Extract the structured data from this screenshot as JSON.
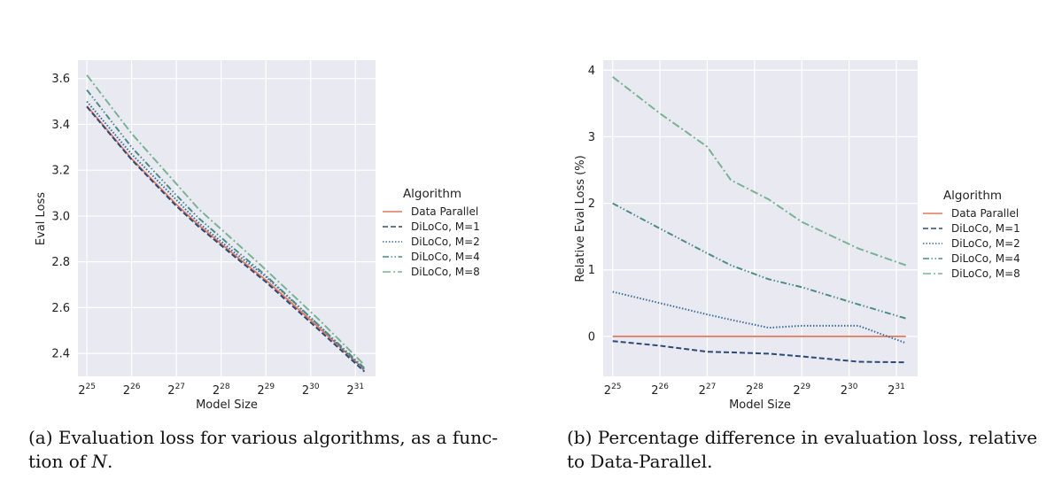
{
  "chart_data": [
    {
      "type": "line",
      "panel": "a",
      "title": "",
      "xlabel": "Model Size",
      "ylabel": "Eval Loss",
      "xscale": "log2",
      "xlim": [
        24.8,
        31.45
      ],
      "ylim": [
        2.3,
        3.68
      ],
      "x_exponents": [
        25,
        26,
        27,
        28,
        29,
        30,
        31
      ],
      "x_tick_base": "2",
      "y_ticks": [
        "2.4",
        "2.6",
        "2.8",
        "3.0",
        "3.2",
        "3.4",
        "3.6"
      ],
      "y_tick_values": [
        2.4,
        2.6,
        2.8,
        3.0,
        3.2,
        3.4,
        3.6
      ],
      "x": [
        25,
        26,
        27,
        27.5,
        28.3,
        29,
        30.2,
        31.2
      ],
      "legend": {
        "title": "Algorithm",
        "placement": "right"
      },
      "series": [
        {
          "name": "Data Parallel",
          "color": "#e07b5f",
          "dash": "solid",
          "values": [
            3.48,
            3.25,
            3.05,
            2.96,
            2.83,
            2.72,
            2.51,
            2.33
          ]
        },
        {
          "name": "DiLoCo, M=1",
          "color": "#2c4a78",
          "dash": "dashed",
          "values": [
            3.477,
            3.246,
            3.043,
            2.953,
            2.823,
            2.712,
            2.5,
            2.321
          ]
        },
        {
          "name": "DiLoCo, M=2",
          "color": "#3a6f9a",
          "dash": "dotted",
          "values": [
            3.5,
            3.27,
            3.07,
            2.97,
            2.84,
            2.735,
            2.52,
            2.325
          ]
        },
        {
          "name": "DiLoCo, M=4",
          "color": "#4c8c86",
          "dash": "dashdotdot",
          "values": [
            3.55,
            3.3,
            3.09,
            2.99,
            2.855,
            2.74,
            2.52,
            2.336
          ]
        },
        {
          "name": "DiLoCo, M=8",
          "color": "#78b394",
          "dash": "dashdot",
          "values": [
            3.615,
            3.36,
            3.14,
            3.03,
            2.89,
            2.765,
            2.545,
            2.35
          ]
        }
      ]
    },
    {
      "type": "line",
      "panel": "b",
      "title": "",
      "xlabel": "Model Size",
      "ylabel": "Relative Eval Loss (%)",
      "xscale": "log2",
      "xlim": [
        24.8,
        31.45
      ],
      "ylim": [
        -0.6,
        4.15
      ],
      "x_exponents": [
        25,
        26,
        27,
        28,
        29,
        30,
        31
      ],
      "x_tick_base": "2",
      "y_ticks": [
        "0",
        "1",
        "2",
        "3",
        "4"
      ],
      "y_tick_values": [
        0,
        1,
        2,
        3,
        4
      ],
      "x": [
        25,
        26,
        27,
        27.5,
        28.3,
        29,
        30.2,
        31.2
      ],
      "legend": {
        "title": "Algorithm",
        "placement": "right"
      },
      "series": [
        {
          "name": "Data Parallel",
          "color": "#e07b5f",
          "dash": "solid",
          "values": [
            0,
            0,
            0,
            0,
            0,
            0,
            0,
            0
          ]
        },
        {
          "name": "DiLoCo, M=1",
          "color": "#2c4a78",
          "dash": "dashed",
          "values": [
            -0.07,
            -0.14,
            -0.23,
            -0.24,
            -0.26,
            -0.3,
            -0.38,
            -0.39
          ]
        },
        {
          "name": "DiLoCo, M=2",
          "color": "#3a6f9a",
          "dash": "dotted",
          "values": [
            0.67,
            0.5,
            0.33,
            0.25,
            0.13,
            0.16,
            0.16,
            -0.1
          ]
        },
        {
          "name": "DiLoCo, M=4",
          "color": "#4c8c86",
          "dash": "dashdotdot",
          "values": [
            2.0,
            1.62,
            1.25,
            1.07,
            0.86,
            0.74,
            0.48,
            0.27
          ]
        },
        {
          "name": "DiLoCo, M=8",
          "color": "#78b394",
          "dash": "dashdot",
          "values": [
            3.9,
            3.35,
            2.85,
            2.35,
            2.06,
            1.72,
            1.32,
            1.07
          ]
        }
      ]
    }
  ],
  "captions": {
    "a_text": "(a) Evaluation loss for various algorithms, as a func-tion of ",
    "a_var": "N",
    "a_end": ".",
    "b_text": "(b) Percentage difference in evaluation loss, relative to Data-Parallel."
  }
}
